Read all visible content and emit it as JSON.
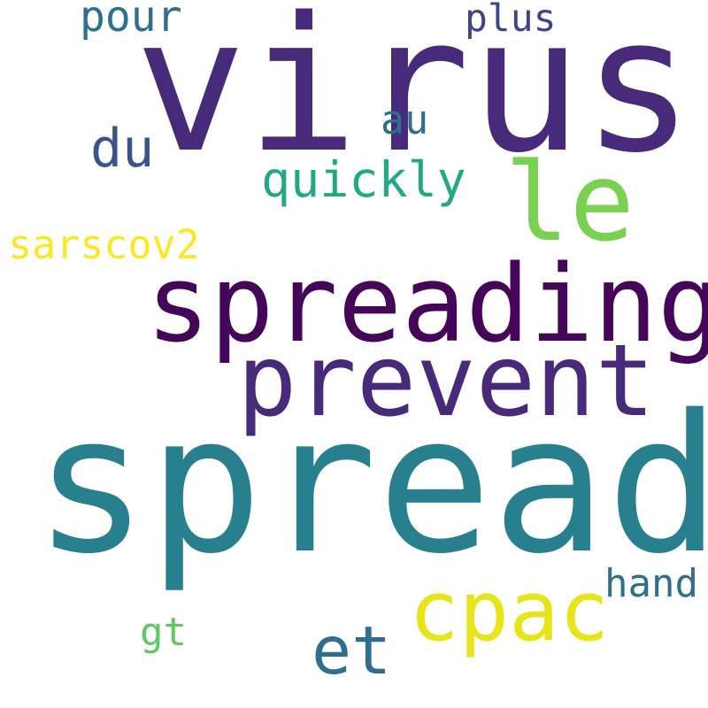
{
  "words": [
    {
      "text": "virus",
      "color": "#472a7a",
      "weight": 1.0
    },
    {
      "text": "spread",
      "color": "#28808e",
      "weight": 1.0
    },
    {
      "text": "spreading",
      "color": "#450559",
      "weight": 0.6
    },
    {
      "text": "prevent",
      "color": "#472a7a",
      "weight": 0.55
    },
    {
      "text": "le",
      "color": "#7ad151",
      "weight": 0.5
    },
    {
      "text": "cpac",
      "color": "#e7e41a",
      "weight": 0.4
    },
    {
      "text": "et",
      "color": "#2e6e8e",
      "weight": 0.35
    },
    {
      "text": "quickly",
      "color": "#22a884",
      "weight": 0.25
    },
    {
      "text": "du",
      "color": "#3b528b",
      "weight": 0.25
    },
    {
      "text": "sarscov2",
      "color": "#fde725",
      "weight": 0.22
    },
    {
      "text": "pour",
      "color": "#2e6e8e",
      "weight": 0.22
    },
    {
      "text": "plus",
      "color": "#414487",
      "weight": 0.2
    },
    {
      "text": "au",
      "color": "#2e6e8e",
      "weight": 0.2
    },
    {
      "text": "hand",
      "color": "#2e6e8e",
      "weight": 0.2
    },
    {
      "text": "gt",
      "color": "#5ec962",
      "weight": 0.2
    }
  ]
}
